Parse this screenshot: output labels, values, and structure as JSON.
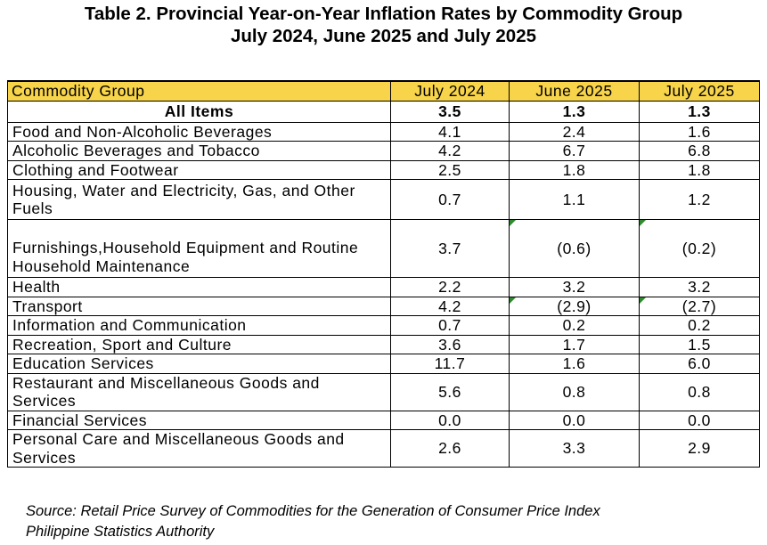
{
  "title": {
    "line1": "Table 2. Provincial Year-on-Year Inflation Rates by Commodity Group",
    "line2": "July 2024, June 2025 and July 2025"
  },
  "table": {
    "headers": [
      "Commodity Group",
      "July 2024",
      "June 2025",
      "July 2025"
    ],
    "rows": [
      {
        "group": "All Items",
        "jul2024": "3.5",
        "jun2025": "1.3",
        "jul2025": "1.3"
      },
      {
        "group": "Food and Non-Alcoholic Beverages",
        "jul2024": "4.1",
        "jun2025": "2.4",
        "jul2025": "1.6"
      },
      {
        "group": "Alcoholic Beverages and Tobacco",
        "jul2024": "4.2",
        "jun2025": "6.7",
        "jul2025": "6.8"
      },
      {
        "group": "Clothing and Footwear",
        "jul2024": "2.5",
        "jun2025": "1.8",
        "jul2025": "1.8"
      },
      {
        "group": "Housing, Water and Electricity, Gas, and Other Fuels",
        "jul2024": "0.7",
        "jun2025": "1.1",
        "jul2025": "1.2"
      },
      {
        "group": "Furnishings,Household Equipment and Routine Household Maintenance",
        "jul2024": "3.7",
        "jun2025": "(0.6)",
        "jul2025": "(0.2)"
      },
      {
        "group": "Health",
        "jul2024": "2.2",
        "jun2025": "3.2",
        "jul2025": "3.2"
      },
      {
        "group": "Transport",
        "jul2024": "4.2",
        "jun2025": "(2.9)",
        "jul2025": "(2.7)"
      },
      {
        "group": "Information and Communication",
        "jul2024": "0.7",
        "jun2025": "0.2",
        "jul2025": "0.2"
      },
      {
        "group": "Recreation, Sport and Culture",
        "jul2024": "3.6",
        "jun2025": "1.7",
        "jul2025": "1.5"
      },
      {
        "group": "Education Services",
        "jul2024": "11.7",
        "jun2025": "1.6",
        "jul2025": "6.0"
      },
      {
        "group": "Restaurant and Miscellaneous Goods and Services",
        "jul2024": "5.6",
        "jun2025": "0.8",
        "jul2025": "0.8"
      },
      {
        "group": "Financial Services",
        "jul2024": "0.0",
        "jun2025": "0.0",
        "jul2025": "0.0"
      },
      {
        "group": "Personal Care and Miscellaneous Goods and Services",
        "jul2024": "2.6",
        "jun2025": "3.3",
        "jul2025": "2.9"
      }
    ]
  },
  "source": {
    "line1": "Source: Retail Price Survey of Commodities for the Generation of Consumer Price Index",
    "line2": "Philippine Statistics Authority"
  },
  "colors": {
    "header_fill": "#f7d44a",
    "error_flag": "#2e8b2e"
  }
}
